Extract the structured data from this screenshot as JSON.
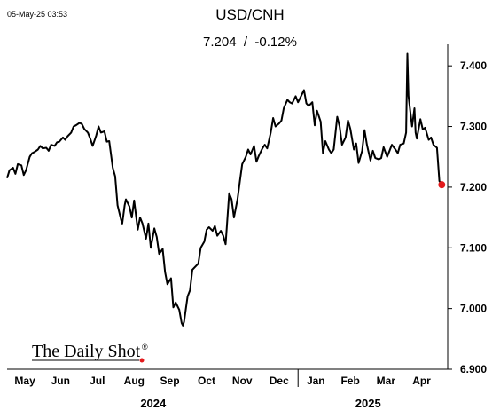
{
  "timestamp": "05-May-25 03:53",
  "brand": {
    "text": "The Daily Shot",
    "mark": "®"
  },
  "colors": {
    "line": "#000000",
    "last_point": "#e31a1c",
    "brand_dot": "#e31a1c",
    "axis": "#000000"
  },
  "chart_data": {
    "type": "line",
    "title": "USD/CNH",
    "subtitle": "7.204  /  -0.12%",
    "xlabel": "",
    "ylabel": "",
    "ylim": [
      6.9,
      7.45
    ],
    "y_axis_side": "right",
    "grid": false,
    "legend": "none",
    "yticks": [
      6.9,
      7.0,
      7.1,
      7.2,
      7.3,
      7.4
    ],
    "ytick_labels": [
      "6.900",
      "7.000",
      "7.100",
      "7.200",
      "7.300",
      "7.400"
    ],
    "xlim": [
      "2024-05-01",
      "2025-05-07"
    ],
    "month_labels": [
      {
        "label": "May",
        "date": "2024-05-16"
      },
      {
        "label": "Jun",
        "date": "2024-06-15"
      },
      {
        "label": "Jul",
        "date": "2024-07-16"
      },
      {
        "label": "Aug",
        "date": "2024-08-16"
      },
      {
        "label": "Sep",
        "date": "2024-09-15"
      },
      {
        "label": "Oct",
        "date": "2024-10-16"
      },
      {
        "label": "Nov",
        "date": "2024-11-15"
      },
      {
        "label": "Dec",
        "date": "2024-12-16"
      },
      {
        "label": "Jan",
        "date": "2025-01-16"
      },
      {
        "label": "Feb",
        "date": "2025-02-14"
      },
      {
        "label": "Mar",
        "date": "2025-03-16"
      },
      {
        "label": "Apr",
        "date": "2025-04-15"
      }
    ],
    "year_labels": [
      {
        "label": "2024",
        "date": "2024-09-01"
      },
      {
        "label": "2025",
        "date": "2025-03-01"
      }
    ],
    "year_boundary": "2025-01-01",
    "last_value": 7.204,
    "change_pct": -0.12,
    "series": [
      {
        "values": [
          [
            "2024-05-01",
            7.215
          ],
          [
            "2024-05-03",
            7.228
          ],
          [
            "2024-05-06",
            7.232
          ],
          [
            "2024-05-08",
            7.222
          ],
          [
            "2024-05-10",
            7.238
          ],
          [
            "2024-05-13",
            7.236
          ],
          [
            "2024-05-15",
            7.22
          ],
          [
            "2024-05-17",
            7.228
          ],
          [
            "2024-05-20",
            7.25
          ],
          [
            "2024-05-22",
            7.256
          ],
          [
            "2024-05-24",
            7.258
          ],
          [
            "2024-05-27",
            7.262
          ],
          [
            "2024-05-29",
            7.268
          ],
          [
            "2024-05-31",
            7.264
          ],
          [
            "2024-06-03",
            7.265
          ],
          [
            "2024-06-05",
            7.26
          ],
          [
            "2024-06-07",
            7.27
          ],
          [
            "2024-06-10",
            7.268
          ],
          [
            "2024-06-12",
            7.274
          ],
          [
            "2024-06-14",
            7.275
          ],
          [
            "2024-06-17",
            7.282
          ],
          [
            "2024-06-19",
            7.278
          ],
          [
            "2024-06-21",
            7.284
          ],
          [
            "2024-06-24",
            7.29
          ],
          [
            "2024-06-26",
            7.3
          ],
          [
            "2024-06-28",
            7.302
          ],
          [
            "2024-07-01",
            7.306
          ],
          [
            "2024-07-03",
            7.304
          ],
          [
            "2024-07-05",
            7.296
          ],
          [
            "2024-07-08",
            7.29
          ],
          [
            "2024-07-10",
            7.28
          ],
          [
            "2024-07-12",
            7.268
          ],
          [
            "2024-07-15",
            7.285
          ],
          [
            "2024-07-17",
            7.3
          ],
          [
            "2024-07-19",
            7.29
          ],
          [
            "2024-07-22",
            7.292
          ],
          [
            "2024-07-24",
            7.275
          ],
          [
            "2024-07-26",
            7.276
          ],
          [
            "2024-07-29",
            7.232
          ],
          [
            "2024-07-31",
            7.218
          ],
          [
            "2024-08-02",
            7.17
          ],
          [
            "2024-08-05",
            7.146
          ],
          [
            "2024-08-06",
            7.14
          ],
          [
            "2024-08-08",
            7.17
          ],
          [
            "2024-08-09",
            7.18
          ],
          [
            "2024-08-12",
            7.168
          ],
          [
            "2024-08-14",
            7.15
          ],
          [
            "2024-08-16",
            7.178
          ],
          [
            "2024-08-19",
            7.13
          ],
          [
            "2024-08-21",
            7.15
          ],
          [
            "2024-08-23",
            7.14
          ],
          [
            "2024-08-26",
            7.115
          ],
          [
            "2024-08-28",
            7.14
          ],
          [
            "2024-08-30",
            7.1
          ],
          [
            "2024-09-02",
            7.132
          ],
          [
            "2024-09-04",
            7.118
          ],
          [
            "2024-09-06",
            7.09
          ],
          [
            "2024-09-09",
            7.098
          ],
          [
            "2024-09-11",
            7.06
          ],
          [
            "2024-09-13",
            7.04
          ],
          [
            "2024-09-16",
            7.05
          ],
          [
            "2024-09-18",
            7.002
          ],
          [
            "2024-09-20",
            7.01
          ],
          [
            "2024-09-23",
            6.998
          ],
          [
            "2024-09-25",
            6.976
          ],
          [
            "2024-09-26",
            6.972
          ],
          [
            "2024-09-27",
            6.978
          ],
          [
            "2024-09-30",
            7.02
          ],
          [
            "2024-10-02",
            7.03
          ],
          [
            "2024-10-04",
            7.064
          ],
          [
            "2024-10-07",
            7.07
          ],
          [
            "2024-10-09",
            7.074
          ],
          [
            "2024-10-11",
            7.1
          ],
          [
            "2024-10-14",
            7.11
          ],
          [
            "2024-10-16",
            7.13
          ],
          [
            "2024-10-18",
            7.134
          ],
          [
            "2024-10-21",
            7.128
          ],
          [
            "2024-10-23",
            7.136
          ],
          [
            "2024-10-25",
            7.12
          ],
          [
            "2024-10-28",
            7.128
          ],
          [
            "2024-10-30",
            7.12
          ],
          [
            "2024-11-01",
            7.106
          ],
          [
            "2024-11-04",
            7.19
          ],
          [
            "2024-11-06",
            7.18
          ],
          [
            "2024-11-08",
            7.15
          ],
          [
            "2024-11-11",
            7.18
          ],
          [
            "2024-11-13",
            7.21
          ],
          [
            "2024-11-15",
            7.238
          ],
          [
            "2024-11-18",
            7.25
          ],
          [
            "2024-11-20",
            7.262
          ],
          [
            "2024-11-22",
            7.254
          ],
          [
            "2024-11-25",
            7.268
          ],
          [
            "2024-11-27",
            7.242
          ],
          [
            "2024-11-29",
            7.252
          ],
          [
            "2024-12-02",
            7.264
          ],
          [
            "2024-12-04",
            7.27
          ],
          [
            "2024-12-06",
            7.264
          ],
          [
            "2024-12-09",
            7.29
          ],
          [
            "2024-12-11",
            7.314
          ],
          [
            "2024-12-13",
            7.3
          ],
          [
            "2024-12-16",
            7.305
          ],
          [
            "2024-12-18",
            7.31
          ],
          [
            "2024-12-20",
            7.33
          ],
          [
            "2024-12-23",
            7.344
          ],
          [
            "2024-12-25",
            7.34
          ],
          [
            "2024-12-27",
            7.338
          ],
          [
            "2024-12-30",
            7.35
          ],
          [
            "2025-01-01",
            7.34
          ],
          [
            "2025-01-03",
            7.348
          ],
          [
            "2025-01-06",
            7.36
          ],
          [
            "2025-01-08",
            7.338
          ],
          [
            "2025-01-10",
            7.334
          ],
          [
            "2025-01-13",
            7.34
          ],
          [
            "2025-01-15",
            7.302
          ],
          [
            "2025-01-17",
            7.326
          ],
          [
            "2025-01-20",
            7.308
          ],
          [
            "2025-01-22",
            7.256
          ],
          [
            "2025-01-24",
            7.276
          ],
          [
            "2025-01-27",
            7.262
          ],
          [
            "2025-01-29",
            7.256
          ],
          [
            "2025-01-31",
            7.262
          ],
          [
            "2025-02-03",
            7.316
          ],
          [
            "2025-02-05",
            7.3
          ],
          [
            "2025-02-07",
            7.27
          ],
          [
            "2025-02-10",
            7.282
          ],
          [
            "2025-02-12",
            7.31
          ],
          [
            "2025-02-14",
            7.296
          ],
          [
            "2025-02-17",
            7.262
          ],
          [
            "2025-02-19",
            7.272
          ],
          [
            "2025-02-21",
            7.24
          ],
          [
            "2025-02-24",
            7.26
          ],
          [
            "2025-02-26",
            7.294
          ],
          [
            "2025-02-28",
            7.27
          ],
          [
            "2025-03-03",
            7.244
          ],
          [
            "2025-03-05",
            7.26
          ],
          [
            "2025-03-07",
            7.248
          ],
          [
            "2025-03-10",
            7.246
          ],
          [
            "2025-03-12",
            7.248
          ],
          [
            "2025-03-14",
            7.266
          ],
          [
            "2025-03-17",
            7.25
          ],
          [
            "2025-03-19",
            7.26
          ],
          [
            "2025-03-21",
            7.27
          ],
          [
            "2025-03-24",
            7.262
          ],
          [
            "2025-03-26",
            7.256
          ],
          [
            "2025-03-28",
            7.27
          ],
          [
            "2025-03-31",
            7.272
          ],
          [
            "2025-04-02",
            7.29
          ],
          [
            "2025-04-03",
            7.42
          ],
          [
            "2025-04-04",
            7.35
          ],
          [
            "2025-04-07",
            7.3
          ],
          [
            "2025-04-09",
            7.33
          ],
          [
            "2025-04-10",
            7.29
          ],
          [
            "2025-04-11",
            7.28
          ],
          [
            "2025-04-14",
            7.312
          ],
          [
            "2025-04-16",
            7.295
          ],
          [
            "2025-04-18",
            7.298
          ],
          [
            "2025-04-21",
            7.278
          ],
          [
            "2025-04-23",
            7.282
          ],
          [
            "2025-04-25",
            7.27
          ],
          [
            "2025-04-28",
            7.265
          ],
          [
            "2025-04-30",
            7.21
          ],
          [
            "2025-05-02",
            7.204
          ]
        ]
      }
    ]
  }
}
